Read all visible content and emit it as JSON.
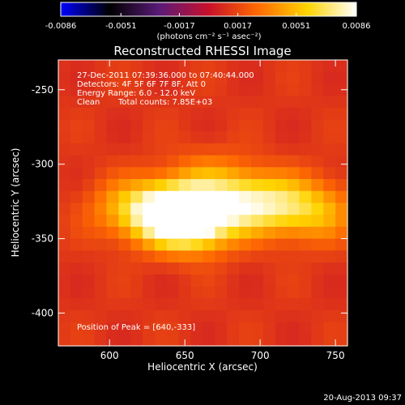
{
  "chart_data": {
    "type": "heatmap",
    "title": "Reconstructed RHESSI Image",
    "xlabel": "Heliocentric X (arcsec)",
    "ylabel": "Heliocentric Y (arcsec)",
    "xlim": [
      566,
      758
    ],
    "ylim": [
      -422,
      -230
    ],
    "x_ticks": [
      "600",
      "650",
      "700",
      "750"
    ],
    "x_tick_values": [
      600,
      650,
      700,
      750
    ],
    "y_ticks": [
      "-250",
      "-300",
      "-350",
      "-400"
    ],
    "y_tick_values": [
      -250,
      -300,
      -350,
      -400
    ],
    "colorbar": {
      "range": [
        -0.0086,
        0.0086
      ],
      "tick_labels": [
        "-0.0086",
        "-0.0051",
        "-0.0017",
        "0.0017",
        "0.0051",
        "0.0086"
      ],
      "tick_values": [
        -0.0086,
        -0.0051,
        -0.0017,
        0.0017,
        0.0051,
        0.0086
      ],
      "units": "(photons cm⁻² s⁻¹ asec⁻²)",
      "colors": [
        "#0000ff",
        "#000000",
        "#5a1a78",
        "#c8102a",
        "#ff6a00",
        "#ffd400",
        "#ffffff"
      ]
    },
    "annotations": [
      "27-Dec-2011 07:39:36.000 to 07:40:44.000",
      "Detectors: 4F 5F 6F 7F 8F, Att 0",
      "Energy Range: 6.0 - 12.0 keV",
      "Clean",
      "Total counts: 7.85E+03",
      "Position of Peak = [640,-333]"
    ],
    "sources": [
      {
        "x": 640,
        "y": -333,
        "peak": 0.0086
      },
      {
        "x": 660,
        "y": -338,
        "peak": 0.0062
      },
      {
        "x": 690,
        "y": -325,
        "peak": 0.0046
      },
      {
        "x": 715,
        "y": -328,
        "peak": 0.0035
      },
      {
        "x": 740,
        "y": -332,
        "peak": 0.003
      },
      {
        "x": 610,
        "y": -330,
        "peak": 0.0028
      },
      {
        "x": 665,
        "y": -310,
        "peak": 0.002
      }
    ],
    "peak_position": [
      640,
      -333
    ]
  },
  "footer": {
    "timestamp": "20-Aug-2013 09:37"
  }
}
